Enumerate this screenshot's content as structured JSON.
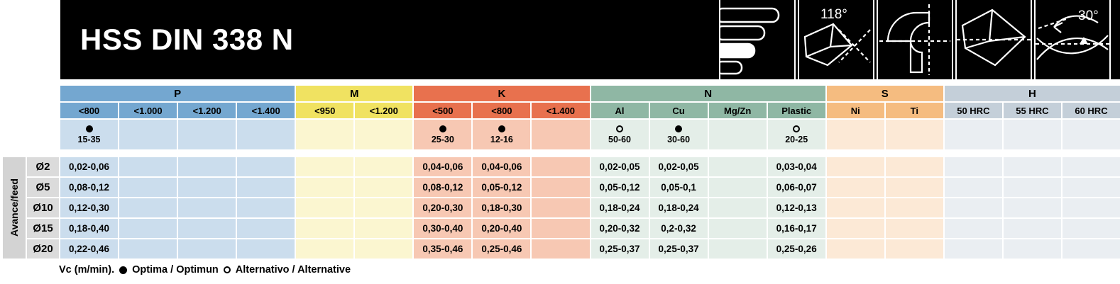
{
  "header": {
    "title": "HSS DIN 338 N",
    "icons": [
      {
        "name": "diameter-range-bars-icon"
      },
      {
        "name": "point-angle-icon",
        "label": "118°"
      },
      {
        "name": "flute-cross-section-icon"
      },
      {
        "name": "cutting-edge-icon"
      },
      {
        "name": "helix-angle-icon",
        "label": "30°"
      }
    ]
  },
  "table": {
    "feed_label": "Avance/feed",
    "groups": [
      {
        "label": "P",
        "header_color": "#74A7D0",
        "light_color": "#CBDDED",
        "cols": [
          "<800",
          "<1.000",
          "<1.200",
          "<1.400"
        ]
      },
      {
        "label": "M",
        "header_color": "#F0E261",
        "light_color": "#FBF6D0",
        "cols": [
          "<950",
          "<1.200"
        ]
      },
      {
        "label": "K",
        "header_color": "#E8714E",
        "light_color": "#F7C8B3",
        "cols": [
          "<500",
          "<800",
          "<1.400"
        ]
      },
      {
        "label": "N",
        "header_color": "#8FB7A4",
        "light_color": "#E4EEE8",
        "cols": [
          "Al",
          "Cu",
          "Mg/Zn",
          "Plastic"
        ]
      },
      {
        "label": "S",
        "header_color": "#F5BC80",
        "light_color": "#FCE9D6",
        "cols": [
          "Ni",
          "Ti"
        ]
      },
      {
        "label": "H",
        "header_color": "#C4CFD9",
        "light_color": "#EAEEF2",
        "cols": [
          "50 HRC",
          "55 HRC",
          "60 HRC"
        ]
      }
    ],
    "vc_row": [
      {
        "sym": "filled",
        "val": "15-35"
      },
      null,
      null,
      null,
      null,
      null,
      {
        "sym": "filled",
        "val": "25-30"
      },
      {
        "sym": "filled",
        "val": "12-16"
      },
      null,
      {
        "sym": "open",
        "val": "50-60"
      },
      {
        "sym": "filled",
        "val": "30-60"
      },
      null,
      {
        "sym": "open",
        "val": "20-25"
      },
      null,
      null,
      null,
      null,
      null
    ],
    "rows": [
      {
        "dia": "Ø2",
        "values": [
          "0,02-0,06",
          "",
          "",
          "",
          "",
          "",
          "0,04-0,06",
          "0,04-0,06",
          "",
          "0,02-0,05",
          "0,02-0,05",
          "",
          "0,03-0,04",
          "",
          "",
          "",
          "",
          ""
        ]
      },
      {
        "dia": "Ø5",
        "values": [
          "0,08-0,12",
          "",
          "",
          "",
          "",
          "",
          "0,08-0,12",
          "0,05-0,12",
          "",
          "0,05-0,12",
          "0,05-0,1",
          "",
          "0,06-0,07",
          "",
          "",
          "",
          "",
          ""
        ]
      },
      {
        "dia": "Ø10",
        "values": [
          "0,12-0,30",
          "",
          "",
          "",
          "",
          "",
          "0,20-0,30",
          "0,18-0,30",
          "",
          "0,18-0,24",
          "0,18-0,24",
          "",
          "0,12-0,13",
          "",
          "",
          "",
          "",
          ""
        ]
      },
      {
        "dia": "Ø15",
        "values": [
          "0,18-0,40",
          "",
          "",
          "",
          "",
          "",
          "0,30-0,40",
          "0,20-0,40",
          "",
          "0,20-0,32",
          "0,2-0,32",
          "",
          "0,16-0,17",
          "",
          "",
          "",
          "",
          ""
        ]
      },
      {
        "dia": "Ø20",
        "values": [
          "0,22-0,46",
          "",
          "",
          "",
          "",
          "",
          "0,35-0,46",
          "0,25-0,46",
          "",
          "0,25-0,37",
          "0,25-0,37",
          "",
          "0,25-0,26",
          "",
          "",
          "",
          "",
          ""
        ]
      }
    ]
  },
  "footer": {
    "vc_label": "Vc (m/min).",
    "optima": "Optima / Optimun",
    "alternative": "Alternativo / Alternative"
  }
}
